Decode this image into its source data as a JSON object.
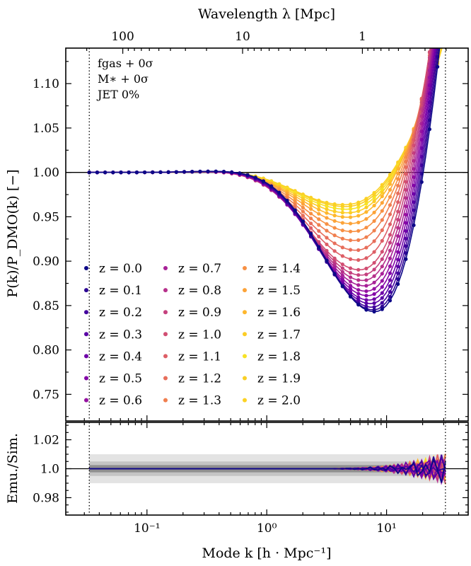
{
  "chart_data": {
    "type": "line",
    "title": "",
    "top_axis": {
      "label": "Wavelength λ [Mpc]",
      "ticks": [
        {
          "label": "100",
          "k": 0.0628
        },
        {
          "label": "10",
          "k": 0.628
        },
        {
          "label": "1",
          "k": 6.28
        }
      ]
    },
    "xlabel": "Mode k [h · Mpc⁻¹]",
    "xscale": "log",
    "xlim": [
      0.021,
      48
    ],
    "x_ticks": [
      {
        "label": "10⁻¹",
        "k": 0.1
      },
      {
        "label": "10⁰",
        "k": 1
      },
      {
        "label": "10¹",
        "k": 10
      }
    ],
    "k_range_markers": [
      0.033,
      31
    ],
    "main_panel": {
      "ylabel": "P(k)/P_DMO(k) [−]",
      "ylim": [
        0.72,
        1.14
      ],
      "yticks": [
        "0.75",
        "0.80",
        "0.85",
        "0.90",
        "0.95",
        "1.00",
        "1.05",
        "1.10"
      ],
      "reference_line": 1.0
    },
    "ratio_panel": {
      "ylabel": "Emu./Sim.",
      "ylim": [
        0.968,
        1.032
      ],
      "yticks": [
        "0.98",
        "1.0",
        "1.02"
      ],
      "reference_line": 1.0,
      "bands": [
        {
          "half_width": 0.01,
          "color": "#e3e3e3"
        },
        {
          "half_width": 0.005,
          "color": "#c4c4c4"
        },
        {
          "half_width": 0.0025,
          "color": "#8f8f8f"
        }
      ]
    },
    "annotations": [
      "fgas + 0σ",
      "M∗ + 0σ",
      "JET 0%"
    ],
    "legend_location": "lower-left",
    "series": [
      {
        "name": "z = 0.0",
        "z": 0.0,
        "color": "#0d0887",
        "k_min": 7.9,
        "depth": 0.157
      },
      {
        "name": "z = 0.1",
        "z": 0.1,
        "color": "#2c0594",
        "k_min": 7.7,
        "depth": 0.155
      },
      {
        "name": "z = 0.2",
        "z": 0.2,
        "color": "#43039e",
        "k_min": 7.5,
        "depth": 0.152
      },
      {
        "name": "z = 0.3",
        "z": 0.3,
        "color": "#5901a5",
        "k_min": 7.3,
        "depth": 0.148
      },
      {
        "name": "z = 0.4",
        "z": 0.4,
        "color": "#6e00a8",
        "k_min": 7.1,
        "depth": 0.144
      },
      {
        "name": "z = 0.5",
        "z": 0.5,
        "color": "#8305a7",
        "k_min": 6.9,
        "depth": 0.139
      },
      {
        "name": "z = 0.6",
        "z": 0.6,
        "color": "#9511a1",
        "k_min": 6.7,
        "depth": 0.134
      },
      {
        "name": "z = 0.7",
        "z": 0.7,
        "color": "#a72197",
        "k_min": 6.5,
        "depth": 0.128
      },
      {
        "name": "z = 0.8",
        "z": 0.8,
        "color": "#b6308b",
        "k_min": 6.3,
        "depth": 0.122
      },
      {
        "name": "z = 0.9",
        "z": 0.9,
        "color": "#c5407e",
        "k_min": 6.1,
        "depth": 0.116
      },
      {
        "name": "z = 1.0",
        "z": 1.0,
        "color": "#d14e72",
        "k_min": 5.9,
        "depth": 0.11
      },
      {
        "name": "z = 1.1",
        "z": 1.1,
        "color": "#dd5e66",
        "k_min": 5.7,
        "depth": 0.099
      },
      {
        "name": "z = 1.2",
        "z": 1.2,
        "color": "#e76e5b",
        "k_min": 5.5,
        "depth": 0.088
      },
      {
        "name": "z = 1.3",
        "z": 1.3,
        "color": "#f07f4f",
        "k_min": 5.3,
        "depth": 0.077
      },
      {
        "name": "z = 1.4",
        "z": 1.4,
        "color": "#f79044",
        "k_min": 5.1,
        "depth": 0.067
      },
      {
        "name": "z = 1.5",
        "z": 1.5,
        "color": "#fca338",
        "k_min": 4.9,
        "depth": 0.058
      },
      {
        "name": "z = 1.6",
        "z": 1.6,
        "color": "#feb72d",
        "k_min": 4.7,
        "depth": 0.051
      },
      {
        "name": "z = 1.7",
        "z": 1.7,
        "color": "#fccd25",
        "k_min": 4.6,
        "depth": 0.046
      },
      {
        "name": "z = 1.8",
        "z": 1.8,
        "color": "#f7e225",
        "k_min": 4.5,
        "depth": 0.042
      },
      {
        "name": "z = 1.9",
        "z": 1.9,
        "color": "#f9cf26",
        "k_min": 4.4,
        "depth": 0.039
      },
      {
        "name": "z = 2.0",
        "z": 2.0,
        "color": "#fcd225",
        "k_min": 4.3,
        "depth": 0.037
      }
    ]
  }
}
